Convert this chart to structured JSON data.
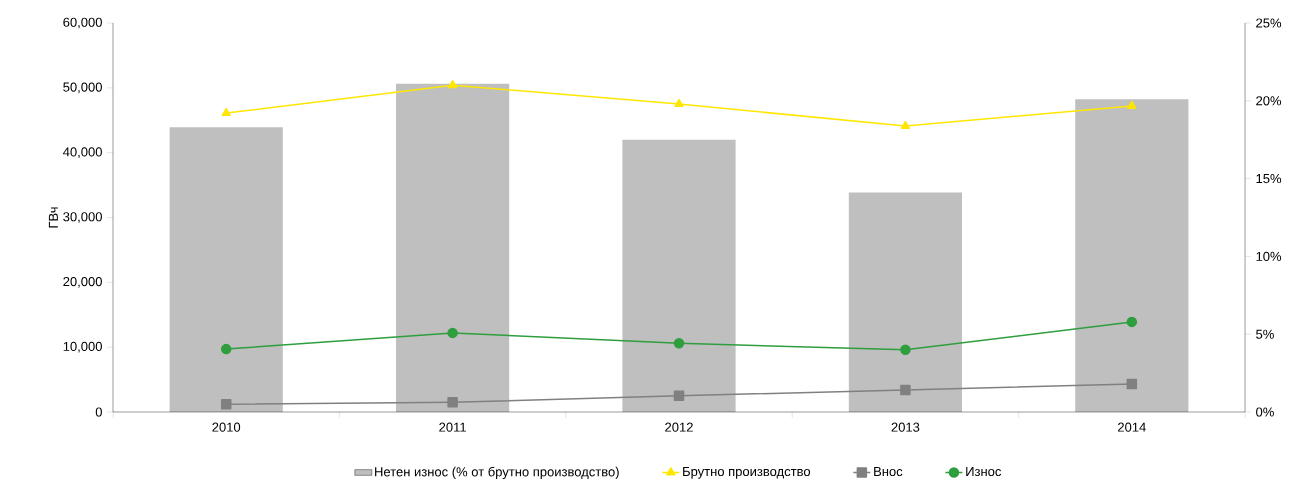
{
  "chart_data": {
    "type": "line",
    "ylabel": "ГВч",
    "categories": [
      "2010",
      "2011",
      "2012",
      "2013",
      "2014"
    ],
    "series": [
      {
        "name": "Нетен износ (% от брутно производство)",
        "type": "bar",
        "axis": "y2",
        "color": "#bfbfbf",
        "values": [
          18.3,
          21.1,
          17.5,
          14.1,
          20.1
        ]
      },
      {
        "name": "Брутно производство",
        "color": "#ffe600",
        "marker": "triangle",
        "values": [
          46100,
          50400,
          47500,
          44100,
          47200
        ]
      },
      {
        "name": "Внос",
        "color": "#808080",
        "marker": "square",
        "values": [
          1200,
          1500,
          2500,
          3400,
          4300
        ]
      },
      {
        "name": "Износ",
        "color": "#2e9e3e",
        "marker": "circle",
        "values": [
          9700,
          12200,
          10600,
          9600,
          13900
        ]
      }
    ],
    "ylim": [
      0,
      60000
    ],
    "yticks": [
      0,
      {
        "value": 10000,
        "label": "10,000"
      },
      {
        "value": 20000,
        "label": "20,000"
      },
      {
        "value": 30000,
        "label": "30,000"
      },
      {
        "value": 40000,
        "label": "40,000"
      },
      {
        "value": 50000,
        "label": "50,000"
      },
      {
        "value": 60000,
        "label": "60,000"
      }
    ],
    "y2lim": [
      0,
      25
    ],
    "y2ticks": [
      {
        "value": 0,
        "label": "0%"
      },
      {
        "value": 5,
        "label": "5%"
      },
      {
        "value": 10,
        "label": "10%"
      },
      {
        "value": 15,
        "label": "15%"
      },
      {
        "value": 20,
        "label": "20%"
      },
      {
        "value": 25,
        "label": "25%"
      }
    ],
    "legend": "bottom",
    "grid": false
  }
}
